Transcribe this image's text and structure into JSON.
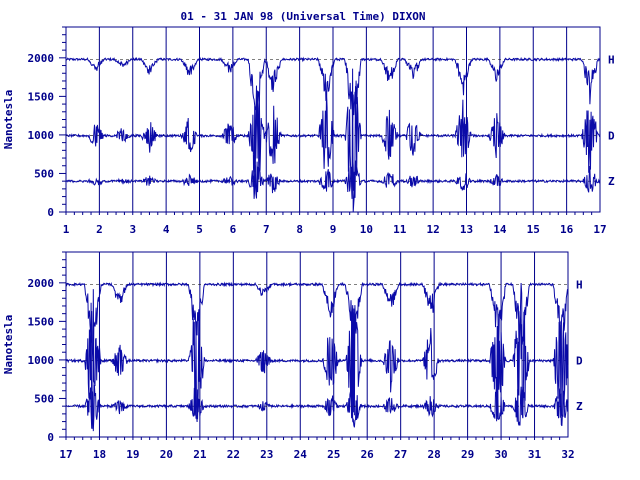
{
  "title": "01 - 31 JAN 98 (Universal Time) DIXON",
  "colors": {
    "frame": "#00008b",
    "trace": "#0a0aa8",
    "text": "#00008b",
    "baseline": "#000000"
  },
  "chart_data": [
    {
      "type": "line",
      "ylabel": "Nanotesla",
      "ylim": [
        0,
        2400
      ],
      "yticks": [
        0,
        500,
        1000,
        1500,
        2000
      ],
      "xlim": [
        1,
        17
      ],
      "xticks": [
        "1",
        "2",
        "3",
        "4",
        "5",
        "6",
        "7",
        "8",
        "9",
        "10",
        "11",
        "12",
        "13",
        "14",
        "15",
        "16",
        "17"
      ],
      "grid": "vertical day lines",
      "series": [
        {
          "name": "H",
          "baseline": 1980
        },
        {
          "name": "D",
          "baseline": 990
        },
        {
          "name": "Z",
          "baseline": 400
        }
      ],
      "disturbances": [
        {
          "day": 1.9,
          "amp": 180
        },
        {
          "day": 2.7,
          "amp": 120
        },
        {
          "day": 3.5,
          "amp": 220
        },
        {
          "day": 4.7,
          "amp": 260
        },
        {
          "day": 5.9,
          "amp": 200
        },
        {
          "day": 6.7,
          "amp": 900
        },
        {
          "day": 7.2,
          "amp": 500
        },
        {
          "day": 8.8,
          "amp": 600
        },
        {
          "day": 9.6,
          "amp": 1100
        },
        {
          "day": 10.7,
          "amp": 400
        },
        {
          "day": 11.4,
          "amp": 300
        },
        {
          "day": 12.9,
          "amp": 500
        },
        {
          "day": 13.9,
          "amp": 300
        },
        {
          "day": 16.7,
          "amp": 600
        }
      ]
    },
    {
      "type": "line",
      "ylabel": "Nanotesla",
      "ylim": [
        0,
        2400
      ],
      "yticks": [
        0,
        500,
        1000,
        1500,
        2000
      ],
      "xlim": [
        17,
        32
      ],
      "xticks": [
        "17",
        "18",
        "19",
        "20",
        "21",
        "22",
        "23",
        "24",
        "25",
        "26",
        "27",
        "28",
        "29",
        "30",
        "31",
        "32"
      ],
      "grid": "vertical day lines",
      "series": [
        {
          "name": "H",
          "baseline": 1980
        },
        {
          "name": "D",
          "baseline": 990
        },
        {
          "name": "Z",
          "baseline": 400
        }
      ],
      "disturbances": [
        {
          "day": 17.8,
          "amp": 1000
        },
        {
          "day": 18.6,
          "amp": 300
        },
        {
          "day": 20.9,
          "amp": 900
        },
        {
          "day": 22.9,
          "amp": 200
        },
        {
          "day": 24.9,
          "amp": 500
        },
        {
          "day": 25.6,
          "amp": 900
        },
        {
          "day": 26.7,
          "amp": 400
        },
        {
          "day": 27.9,
          "amp": 500
        },
        {
          "day": 29.9,
          "amp": 900
        },
        {
          "day": 30.6,
          "amp": 1100
        },
        {
          "day": 31.8,
          "amp": 900
        }
      ]
    }
  ]
}
